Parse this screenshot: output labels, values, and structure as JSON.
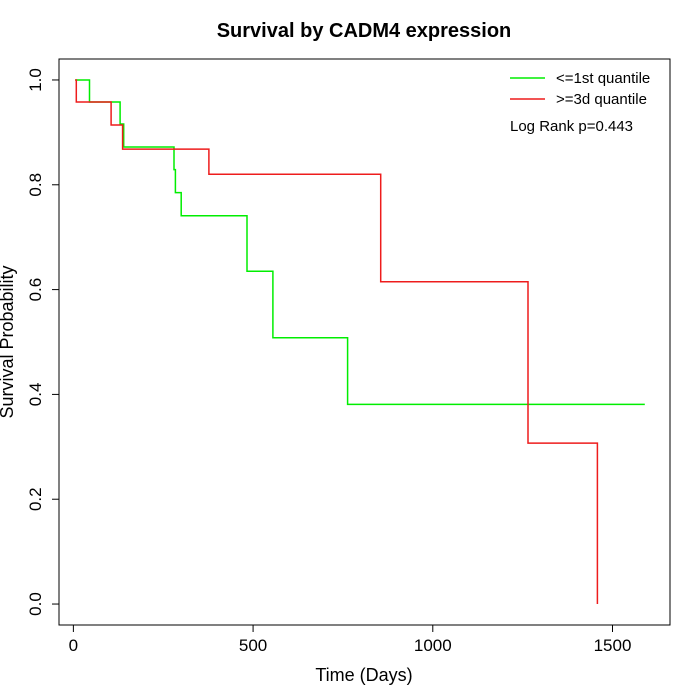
{
  "chart_data": {
    "type": "line",
    "title": "Survival by CADM4 expression",
    "xlabel": "Time (Days)",
    "ylabel": "Survival Probability",
    "xlim": [
      -40,
      1660
    ],
    "ylim": [
      -0.04,
      1.04
    ],
    "xticks": [
      0,
      500,
      1000,
      1500
    ],
    "yticks": [
      0.0,
      0.2,
      0.4,
      0.6,
      0.8,
      1.0
    ],
    "xtick_labels": [
      "0",
      "500",
      "1000",
      "1500"
    ],
    "ytick_labels": [
      "0.0",
      "0.2",
      "0.4",
      "0.6",
      "0.8",
      "1.0"
    ],
    "legend_position": "top-right",
    "annotation": "Log Rank p=0.443",
    "series": [
      {
        "name": "<=1st quantile",
        "color": "#00ee00",
        "step_points": [
          [
            5,
            1.0
          ],
          [
            45,
            1.0
          ],
          [
            45,
            0.958
          ],
          [
            130,
            0.958
          ],
          [
            130,
            0.916
          ],
          [
            140,
            0.916
          ],
          [
            140,
            0.872
          ],
          [
            280,
            0.872
          ],
          [
            280,
            0.829
          ],
          [
            284,
            0.829
          ],
          [
            284,
            0.785
          ],
          [
            300,
            0.785
          ],
          [
            300,
            0.741
          ],
          [
            483,
            0.741
          ],
          [
            483,
            0.635
          ],
          [
            555,
            0.635
          ],
          [
            555,
            0.508
          ],
          [
            763,
            0.508
          ],
          [
            763,
            0.381
          ],
          [
            1590,
            0.381
          ]
        ]
      },
      {
        "name": ">=3d quantile",
        "color": "#ee1c1c",
        "step_points": [
          [
            5,
            1.0
          ],
          [
            8,
            1.0
          ],
          [
            8,
            0.958
          ],
          [
            105,
            0.958
          ],
          [
            105,
            0.914
          ],
          [
            137,
            0.914
          ],
          [
            137,
            0.868
          ],
          [
            377,
            0.868
          ],
          [
            377,
            0.82
          ],
          [
            855,
            0.82
          ],
          [
            855,
            0.615
          ],
          [
            1265,
            0.615
          ],
          [
            1265,
            0.307
          ],
          [
            1458,
            0.307
          ],
          [
            1458,
            0.0
          ]
        ]
      }
    ]
  }
}
